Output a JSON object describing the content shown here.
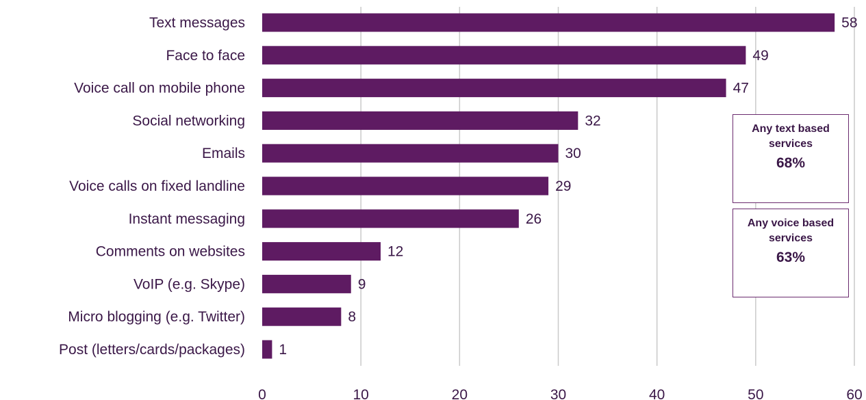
{
  "chart_data": {
    "type": "bar",
    "orientation": "horizontal",
    "categories": [
      "Text messages",
      "Face to face",
      "Voice call on mobile phone",
      "Social networking",
      "Emails",
      "Voice calls on fixed landline",
      "Instant messaging",
      "Comments on websites",
      "VoIP (e.g. Skype)",
      "Micro blogging (e.g. Twitter)",
      "Post (letters/cards/packages)"
    ],
    "values": [
      58,
      49,
      47,
      32,
      30,
      29,
      26,
      12,
      9,
      8,
      1
    ],
    "xlim": [
      0,
      60
    ],
    "xticks": [
      "0",
      "10",
      "20",
      "30",
      "40",
      "50",
      "60"
    ],
    "grid": true,
    "bar_color": "#5e1b62"
  },
  "callouts": [
    {
      "text": "Any text based services",
      "value": "68%"
    },
    {
      "text": "Any voice based services",
      "value": "63%"
    }
  ]
}
